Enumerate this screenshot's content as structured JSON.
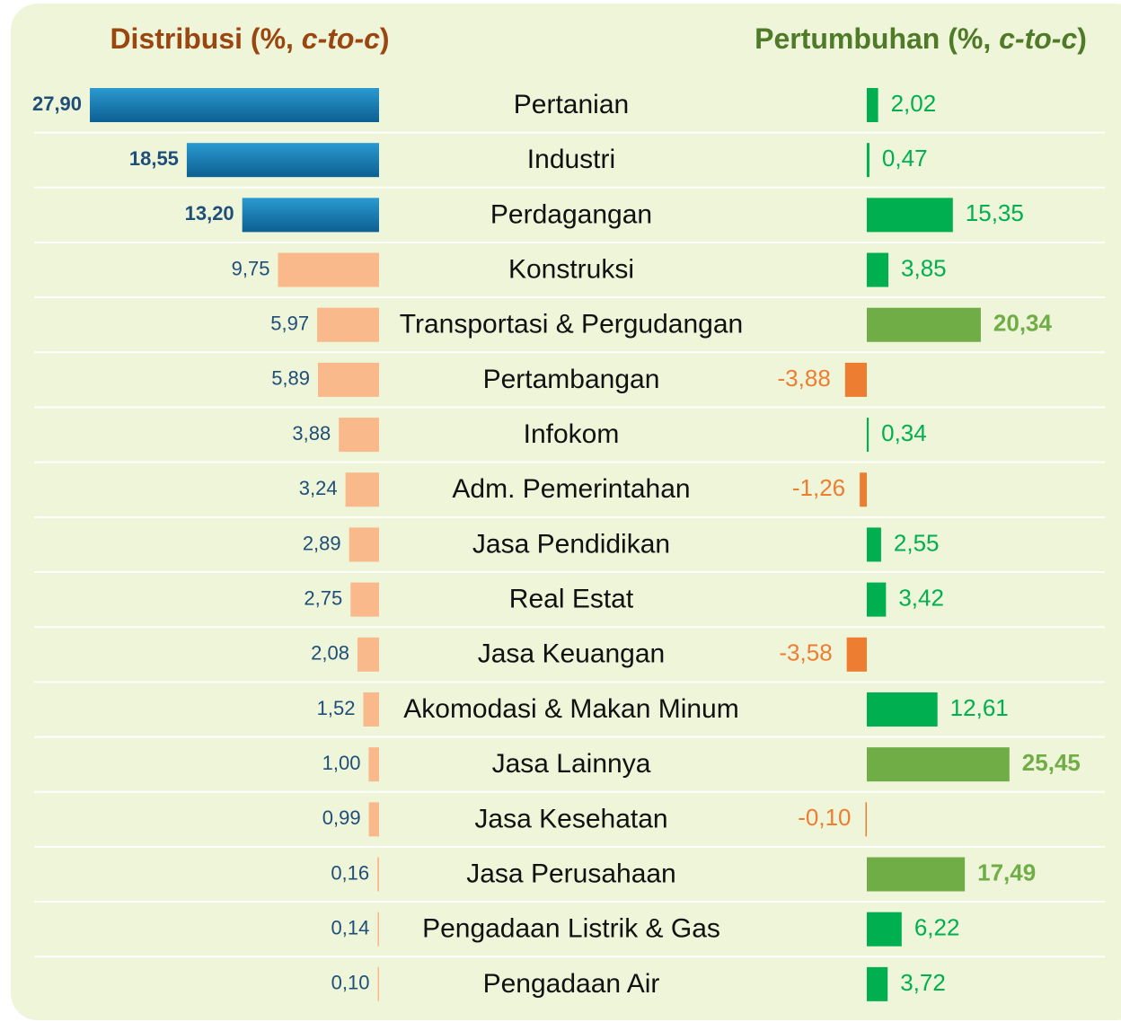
{
  "chart_data": {
    "type": "bar",
    "orientation": "horizontal",
    "categories": [
      "Pertanian",
      "Industri",
      "Perdagangan",
      "Konstruksi",
      "Transportasi & Pergudangan",
      "Pertambangan",
      "Infokom",
      "Adm. Pemerintahan",
      "Jasa Pendidikan",
      "Real Estat",
      "Jasa Keuangan",
      "Akomodasi & Makan Minum",
      "Jasa Lainnya",
      "Jasa Kesehatan",
      "Jasa Perusahaan",
      "Pengadaan Listrik & Gas",
      "Pengadaan Air"
    ],
    "series": [
      {
        "name": "Distribusi (%, c-to-c)",
        "title_color": "#9a4610",
        "label_color": "#1f4e79",
        "xlim": [
          0,
          28
        ],
        "values": [
          27.9,
          18.55,
          13.2,
          9.75,
          5.97,
          5.89,
          3.88,
          3.24,
          2.89,
          2.75,
          2.08,
          1.52,
          1.0,
          0.99,
          0.16,
          0.14,
          0.1
        ],
        "value_labels": [
          "27,90",
          "18,55",
          "13,20",
          "9,75",
          "5,97",
          "5,89",
          "3,88",
          "3,24",
          "2,89",
          "2,75",
          "2,08",
          "1,52",
          "1,00",
          "0,99",
          "0,16",
          "0,14",
          "0,10"
        ],
        "colors": [
          "#1478b0",
          "#1478b0",
          "#1478b0",
          "#f9b98a",
          "#f9b98a",
          "#f9b98a",
          "#f9b98a",
          "#f9b98a",
          "#f9b98a",
          "#f9b98a",
          "#f9b98a",
          "#f9b98a",
          "#f9b98a",
          "#f9b98a",
          "#f9b98a",
          "#f9b98a",
          "#f9b98a"
        ],
        "label_bold": [
          true,
          true,
          true,
          false,
          false,
          false,
          false,
          false,
          false,
          false,
          false,
          false,
          false,
          false,
          false,
          false,
          false
        ]
      },
      {
        "name": "Pertumbuhan (%, c-to-c)",
        "title_color": "#4f7a28",
        "xlim": [
          -5,
          30
        ],
        "values": [
          2.02,
          0.47,
          15.35,
          3.85,
          20.34,
          -3.88,
          0.34,
          -1.26,
          2.55,
          3.42,
          -3.58,
          12.61,
          25.45,
          -0.1,
          17.49,
          6.22,
          3.72
        ],
        "value_labels": [
          "2,02",
          "0,47",
          "15,35",
          "3,85",
          "20,34",
          "-3,88",
          "0,34",
          "-1,26",
          "2,55",
          "3,42",
          "-3,58",
          "12,61",
          "25,45",
          "-0,10",
          "17,49",
          "6,22",
          "3,72"
        ],
        "colors": [
          "#00b050",
          "#00b050",
          "#00b050",
          "#00b050",
          "#70ad47",
          "#ed7d31",
          "#00b050",
          "#ed7d31",
          "#00b050",
          "#00b050",
          "#ed7d31",
          "#00b050",
          "#70ad47",
          "#ed7d31",
          "#70ad47",
          "#00b050",
          "#00b050"
        ],
        "label_bold": [
          false,
          false,
          false,
          false,
          true,
          false,
          false,
          false,
          false,
          false,
          false,
          false,
          true,
          false,
          true,
          false,
          false
        ]
      }
    ]
  }
}
